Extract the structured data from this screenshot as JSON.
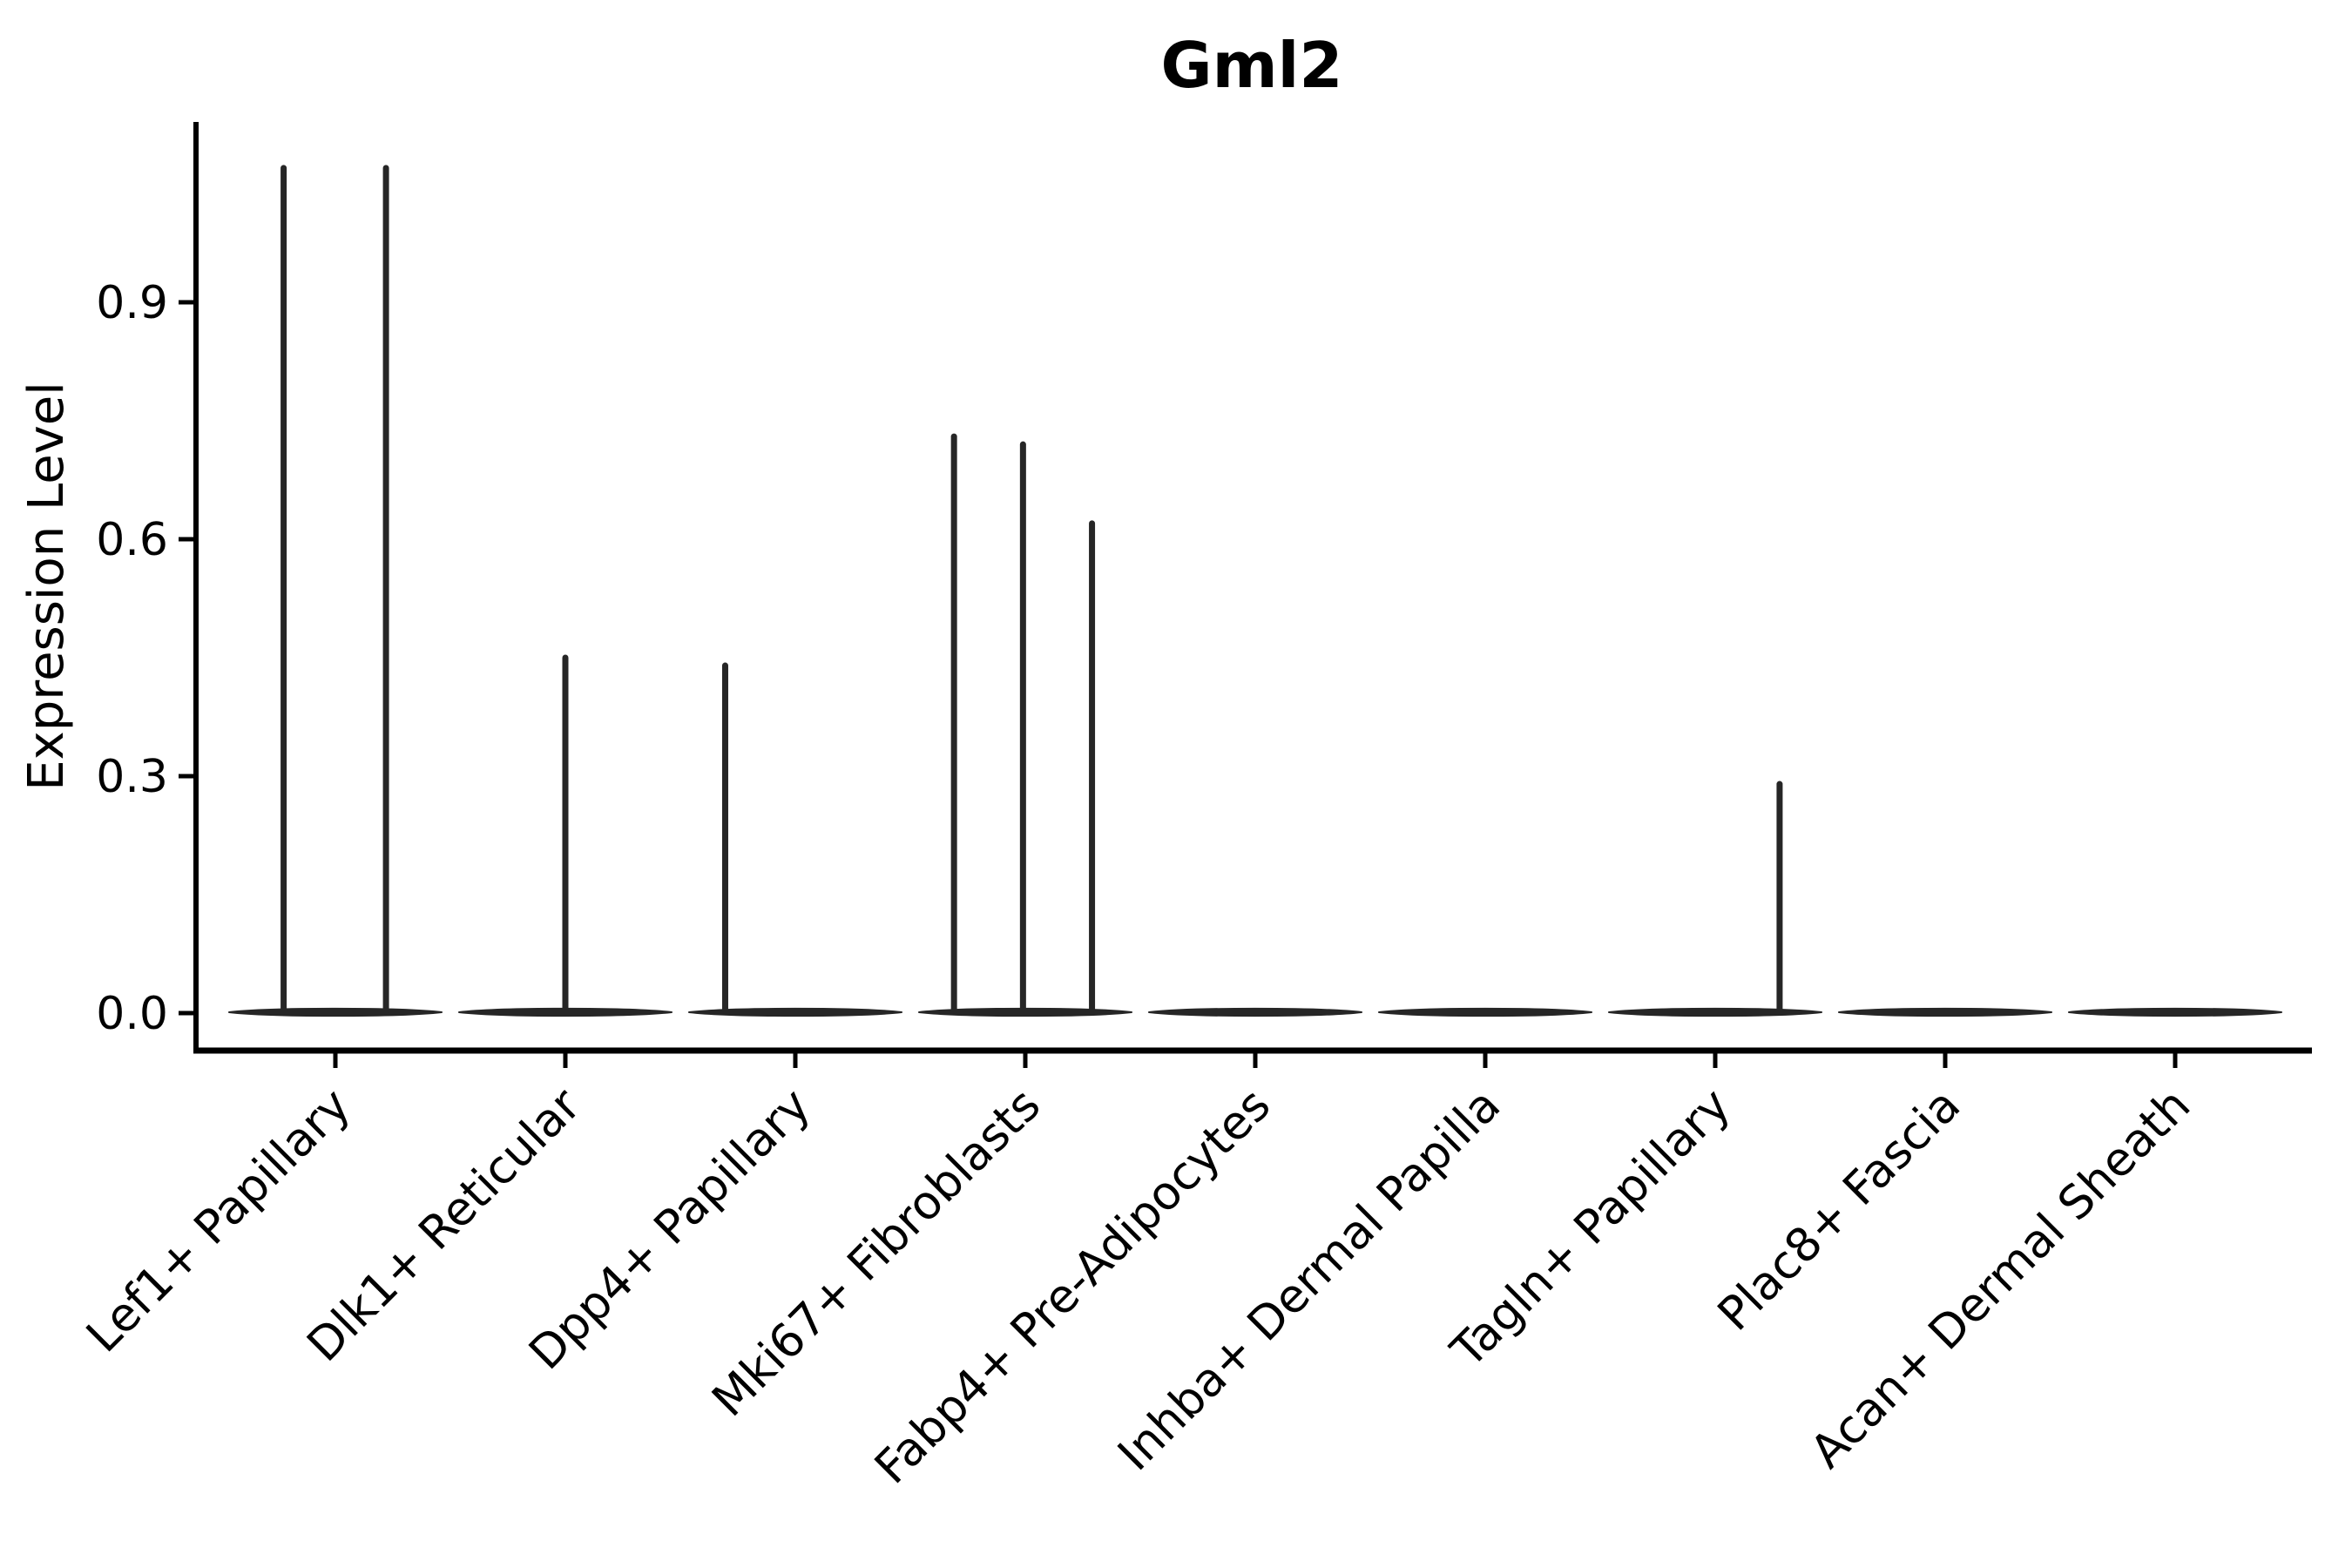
{
  "chart_data": {
    "type": "violin",
    "title": "Gml2",
    "ylabel": "Expression Level",
    "xlabel": "",
    "grid": false,
    "legend_position": "none",
    "ylim": [
      -0.05,
      1.13
    ],
    "yticks": [
      {
        "label": "0.0",
        "value": 0.0
      },
      {
        "label": "0.3",
        "value": 0.3
      },
      {
        "label": "0.6",
        "value": 0.6
      },
      {
        "label": "0.9",
        "value": 0.9
      }
    ],
    "categories": [
      "Lef1+ Papillary",
      "Dlk1+ Reticular",
      "Dpp4+ Papillary",
      "Mki67+ Fibroblasts",
      "Fabp4+ Pre-Adipocytes",
      "Inhba+ Dermal Papilla",
      "Tagln+ Papillary",
      "Plac8+ Fascia",
      "Acan+ Dermal Sheath"
    ],
    "violins": [
      {
        "category": "Lef1+ Papillary",
        "base_value": 0.0,
        "spikes": [
          {
            "offset_frac": -0.225,
            "value": 1.07
          },
          {
            "offset_frac": 0.22,
            "value": 1.07
          }
        ]
      },
      {
        "category": "Dlk1+ Reticular",
        "base_value": 0.0,
        "spikes": [
          {
            "offset_frac": 0.0,
            "value": 0.45
          }
        ]
      },
      {
        "category": "Dpp4+ Papillary",
        "base_value": 0.0,
        "spikes": [
          {
            "offset_frac": -0.305,
            "value": 0.44
          }
        ]
      },
      {
        "category": "Mki67+ Fibroblasts",
        "base_value": 0.0,
        "spikes": [
          {
            "offset_frac": -0.31,
            "value": 0.73
          },
          {
            "offset_frac": -0.01,
            "value": 0.72
          },
          {
            "offset_frac": 0.29,
            "value": 0.62
          }
        ]
      },
      {
        "category": "Fabp4+ Pre-Adipocytes",
        "base_value": 0.0,
        "spikes": []
      },
      {
        "category": "Inhba+ Dermal Papilla",
        "base_value": 0.0,
        "spikes": []
      },
      {
        "category": "Tagln+ Papillary",
        "base_value": 0.0,
        "spikes": [
          {
            "offset_frac": 0.28,
            "value": 0.29
          }
        ]
      },
      {
        "category": "Plac8+ Fascia",
        "base_value": 0.0,
        "spikes": []
      },
      {
        "category": "Acan+ Dermal Sheath",
        "base_value": 0.0,
        "spikes": []
      }
    ],
    "style": {
      "violin_color": "#262626",
      "axis_color": "#000000",
      "background": "#ffffff",
      "body_width_frac": 0.92
    }
  }
}
